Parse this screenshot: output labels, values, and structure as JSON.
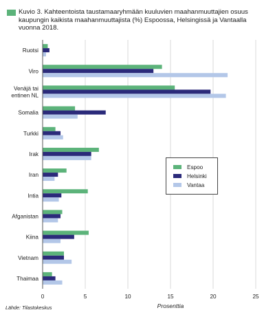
{
  "title": "Kuvio 3. Kahteentoista taustamaaryhmään kuuluvien maahanmuuttajien osuus kaupungin kaikista maahanmuuttajista (%) Espoossa, Helsingissä ja Vantaalla vuonna 2018.",
  "title_swatch_color": "#5cb37a",
  "source": "Lähde: Tilastokeskus",
  "chart_data": {
    "type": "bar",
    "orientation": "horizontal",
    "categories": [
      "Ruotsi",
      "Viro",
      "Venäjä tai entinen NL",
      "Somalia",
      "Turkki",
      "Irak",
      "Iran",
      "Intia",
      "Afganistan",
      "Kiina",
      "Vietnam",
      "Thaimaa"
    ],
    "category_lines": [
      [
        "Ruotsi"
      ],
      [
        "Viro"
      ],
      [
        "Venäjä tai",
        "entinen NL"
      ],
      [
        "Somalia"
      ],
      [
        "Turkki"
      ],
      [
        "Irak"
      ],
      [
        "Iran"
      ],
      [
        "Intia"
      ],
      [
        "Afganistan"
      ],
      [
        "Kiina"
      ],
      [
        "Vietnam"
      ],
      [
        "Thaimaa"
      ]
    ],
    "series": [
      {
        "name": "Espoo",
        "color": "#5cb37a",
        "values": [
          0.6,
          14.0,
          15.5,
          3.8,
          1.5,
          6.6,
          2.8,
          5.3,
          2.3,
          5.4,
          2.5,
          1.1
        ]
      },
      {
        "name": "Helsinki",
        "color": "#2b2a7a",
        "values": [
          0.8,
          13.0,
          19.7,
          7.4,
          2.1,
          5.7,
          1.8,
          2.2,
          2.1,
          3.7,
          2.5,
          1.5
        ]
      },
      {
        "name": "Vantaa",
        "color": "#b3c7e8",
        "values": [
          0.4,
          21.7,
          21.5,
          4.1,
          2.4,
          5.7,
          1.4,
          1.9,
          1.8,
          2.1,
          3.4,
          2.3
        ]
      }
    ],
    "xlabel": "Prosenttia",
    "xlim": [
      0,
      25
    ],
    "xticks": [
      0,
      5,
      10,
      15,
      20,
      25
    ],
    "grid": true,
    "legend_position": "right"
  }
}
